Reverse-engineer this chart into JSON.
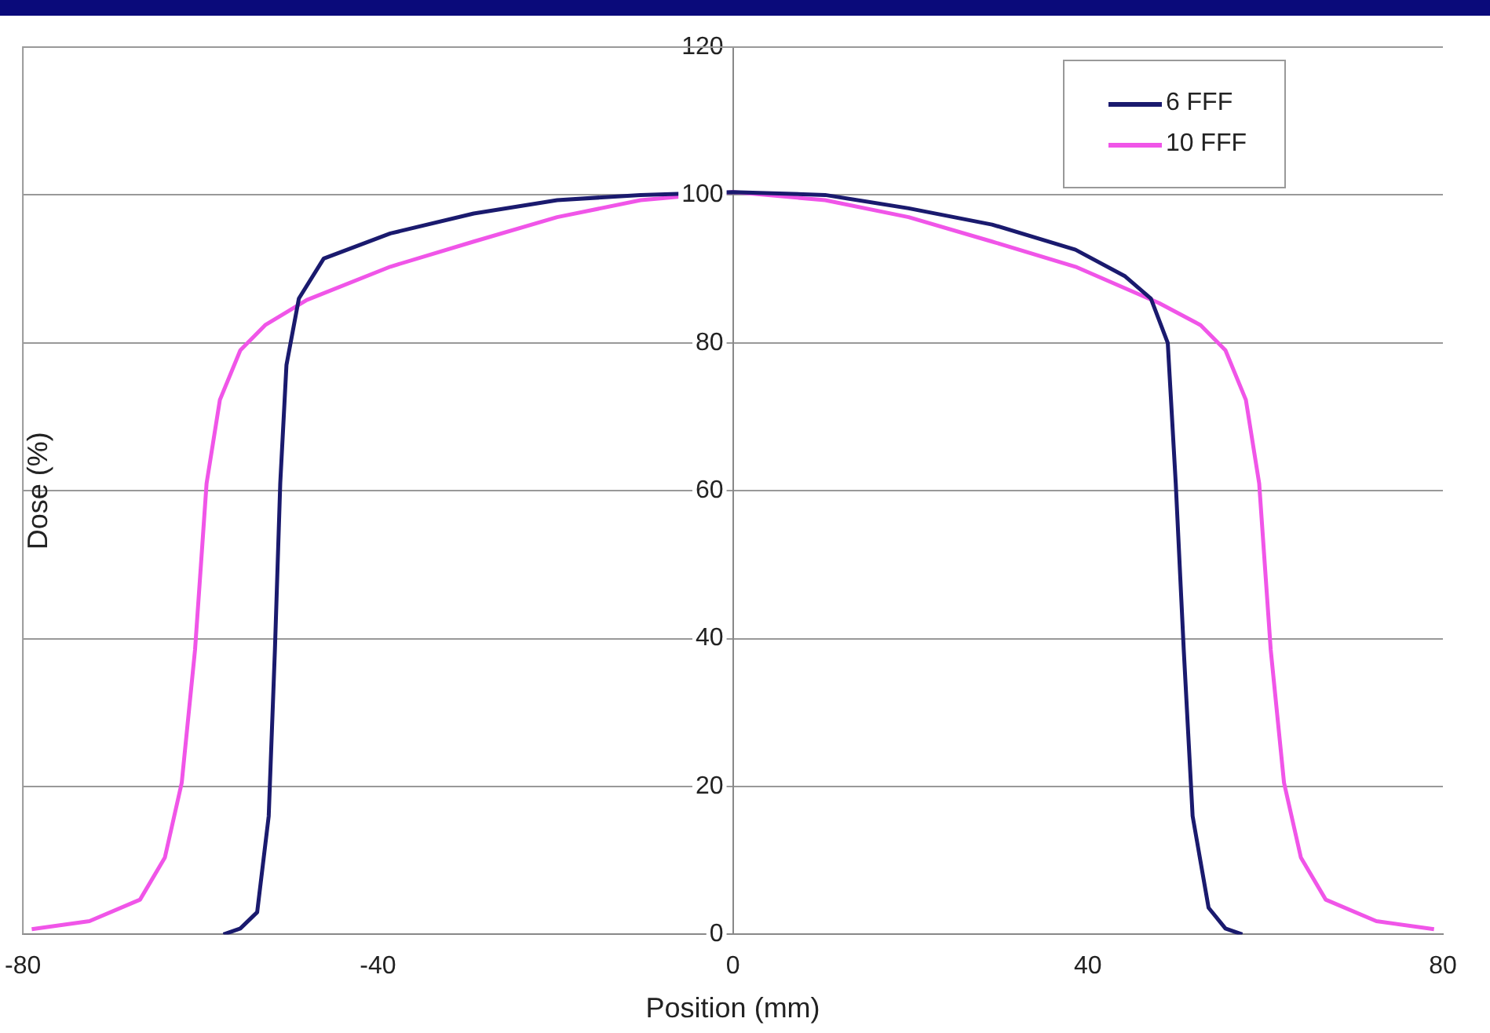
{
  "chart_data": {
    "type": "line",
    "xlabel": "Position (mm)",
    "ylabel": "Dose (%)",
    "xlim": [
      -80,
      80
    ],
    "xticks": [
      -80,
      -40,
      0,
      40,
      80
    ],
    "ylim": [
      0,
      120
    ],
    "yticks": [
      0,
      20,
      40,
      60,
      80,
      100,
      120
    ],
    "grid": "y",
    "legend": "top right",
    "marker": "none",
    "line_style": "solid",
    "series": [
      {
        "name": "6 FFF",
        "color": "#1a1a6e",
        "x": [
          -57.4,
          -55.5,
          -53.6,
          -52.3,
          -51.6,
          -51,
          -50.3,
          -48.9,
          -46.1,
          -38.6,
          -29.2,
          -19.8,
          -10.4,
          0,
          10.4,
          19.8,
          29.2,
          38.6,
          44.2,
          47.1,
          49,
          49.9,
          50.8,
          51.8,
          53.6,
          55.5,
          57.4
        ],
        "values": [
          0,
          0.8,
          3,
          16,
          38.5,
          61,
          77,
          86,
          91.4,
          94.8,
          97.5,
          99.3,
          100,
          100.4,
          100,
          98.2,
          96,
          92.6,
          89,
          86,
          80,
          61,
          38.5,
          16,
          3.6,
          0.8,
          0
        ]
      },
      {
        "name": "10 FFF",
        "color": "#f055e8",
        "x": [
          -79,
          -72.5,
          -66.8,
          -64,
          -62.1,
          -60.6,
          -59.3,
          -57.8,
          -55.5,
          -52.7,
          -48,
          -38.6,
          -29.2,
          -19.8,
          -10.4,
          0,
          10.4,
          19.8,
          29.2,
          38.6,
          48,
          52.7,
          55.5,
          57.8,
          59.3,
          60.6,
          62.1,
          64,
          66.8,
          72.5,
          79
        ],
        "values": [
          0.7,
          1.8,
          4.7,
          10.4,
          20.5,
          38.5,
          61,
          72.3,
          79,
          82.4,
          85.8,
          90.3,
          93.7,
          97,
          99.3,
          100.4,
          99.3,
          97,
          93.7,
          90.3,
          85.4,
          82.4,
          79,
          72.3,
          61,
          38.5,
          20.5,
          10.4,
          4.7,
          1.8,
          0.7
        ]
      }
    ]
  }
}
